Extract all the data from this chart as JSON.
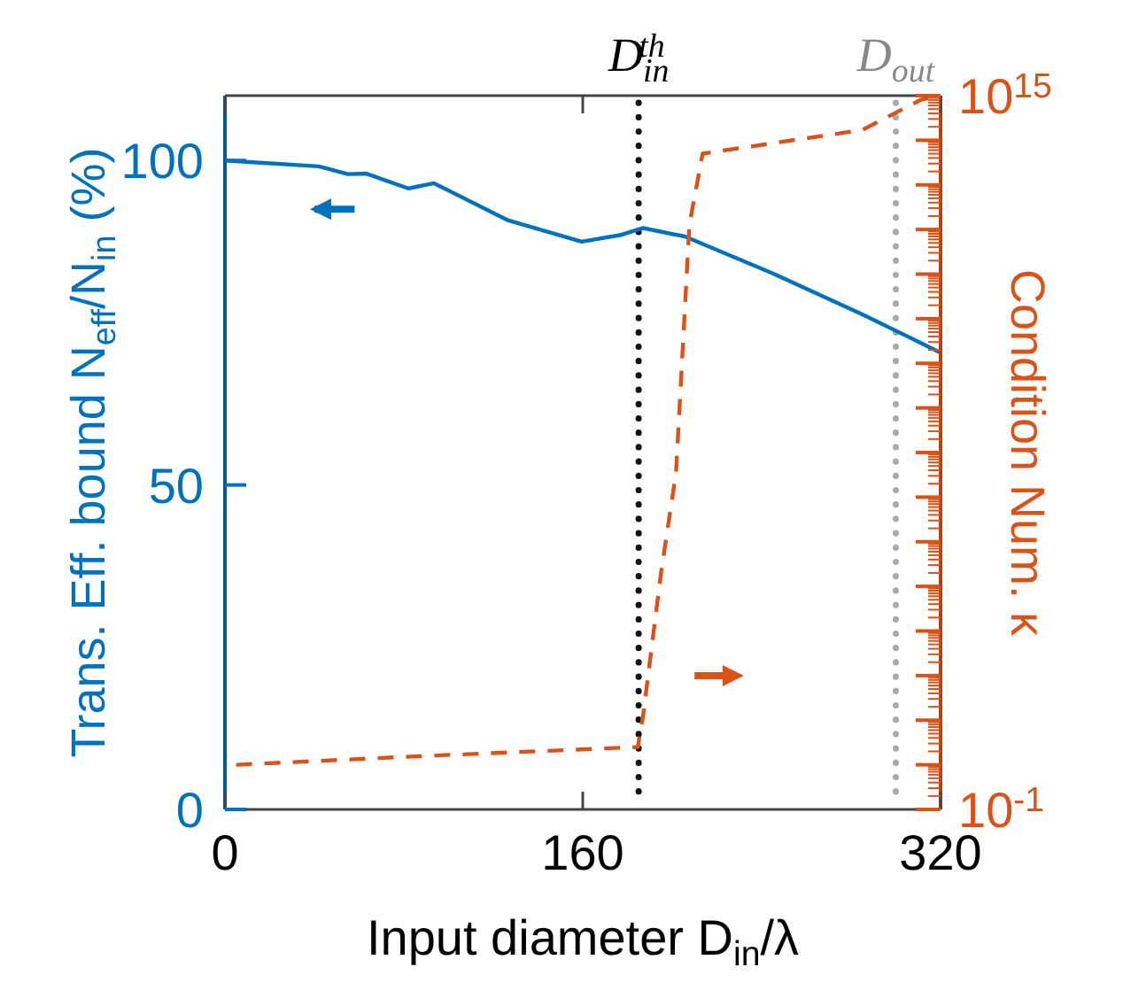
{
  "chart_data": {
    "type": "line",
    "xlabel": "Input diameter D$_{in}$/λ",
    "ylabel": "Trans. Eff. bound N$_{eff}$/N$_{in}$ (%)",
    "y2label": "Condition Num. κ",
    "xlim": [
      0,
      320
    ],
    "xticks": [
      0,
      160,
      320
    ],
    "ylim": [
      0,
      110
    ],
    "yticks": [
      0,
      50,
      100
    ],
    "y2lim": [
      0.1,
      1000000000000000.0
    ],
    "y2ticks": [
      {
        "value": 0.1,
        "label": "10$^{-1}$"
      },
      {
        "value": 1,
        "label": null
      },
      {
        "value": 10,
        "label": null
      },
      {
        "value": 100,
        "label": null
      },
      {
        "value": 1000.0,
        "label": null
      },
      {
        "value": 10000.0,
        "label": null
      },
      {
        "value": 100000.0,
        "label": null
      },
      {
        "value": 1000000.0,
        "label": null
      },
      {
        "value": 10000000.0,
        "label": null
      },
      {
        "value": 100000000.0,
        "label": null
      },
      {
        "value": 1000000000.0,
        "label": null
      },
      {
        "value": 10000000000.0,
        "label": null
      },
      {
        "value": 100000000000.0,
        "label": null
      },
      {
        "value": 1000000000000.0,
        "label": null
      },
      {
        "value": 10000000000000.0,
        "label": null
      },
      {
        "value": 100000000000000.0,
        "label": null
      },
      {
        "value": 1000000000000000.0,
        "label": "10$^{15}$"
      }
    ],
    "log": "y2",
    "grid": false,
    "series": [
      {
        "color": "#0072bd",
        "line_style": "solid",
        "x": [
          0,
          42,
          55,
          63,
          82,
          93.5,
          126.5,
          159.5,
          176.6,
          187,
          205.6,
          245,
          285,
          320
        ],
        "values": [
          100,
          99.1,
          97.9,
          98,
          95.7,
          96.5,
          90.8,
          87.5,
          88.5,
          89.6,
          88.3,
          82.6,
          76.3,
          70.4
        ]
      },
      {
        "color": "#d95319",
        "line_style": "dashed",
        "axis": "y2",
        "x": [
          5,
          92,
          184.6,
          187,
          195,
          201.7,
          207.7,
          213.6,
          224,
          285,
          311,
          315
        ],
        "values": [
          1,
          1.6,
          2.5,
          13,
          20000,
          3500000,
          1300000000000.0,
          50000000000000.0,
          60000000000000.0,
          170000000000000.0,
          800000000000000.0,
          900000000000000.0
        ]
      }
    ],
    "ref_lines": [
      {
        "axis": "x",
        "value": 185,
        "label": "D$_{in}$$^{th}$",
        "color": "#111111",
        "line_style": "dotted"
      },
      {
        "axis": "x",
        "value": 300,
        "label": "D$_{out}$",
        "color": "#aaaaaa",
        "line_style": "dotted"
      }
    ]
  }
}
